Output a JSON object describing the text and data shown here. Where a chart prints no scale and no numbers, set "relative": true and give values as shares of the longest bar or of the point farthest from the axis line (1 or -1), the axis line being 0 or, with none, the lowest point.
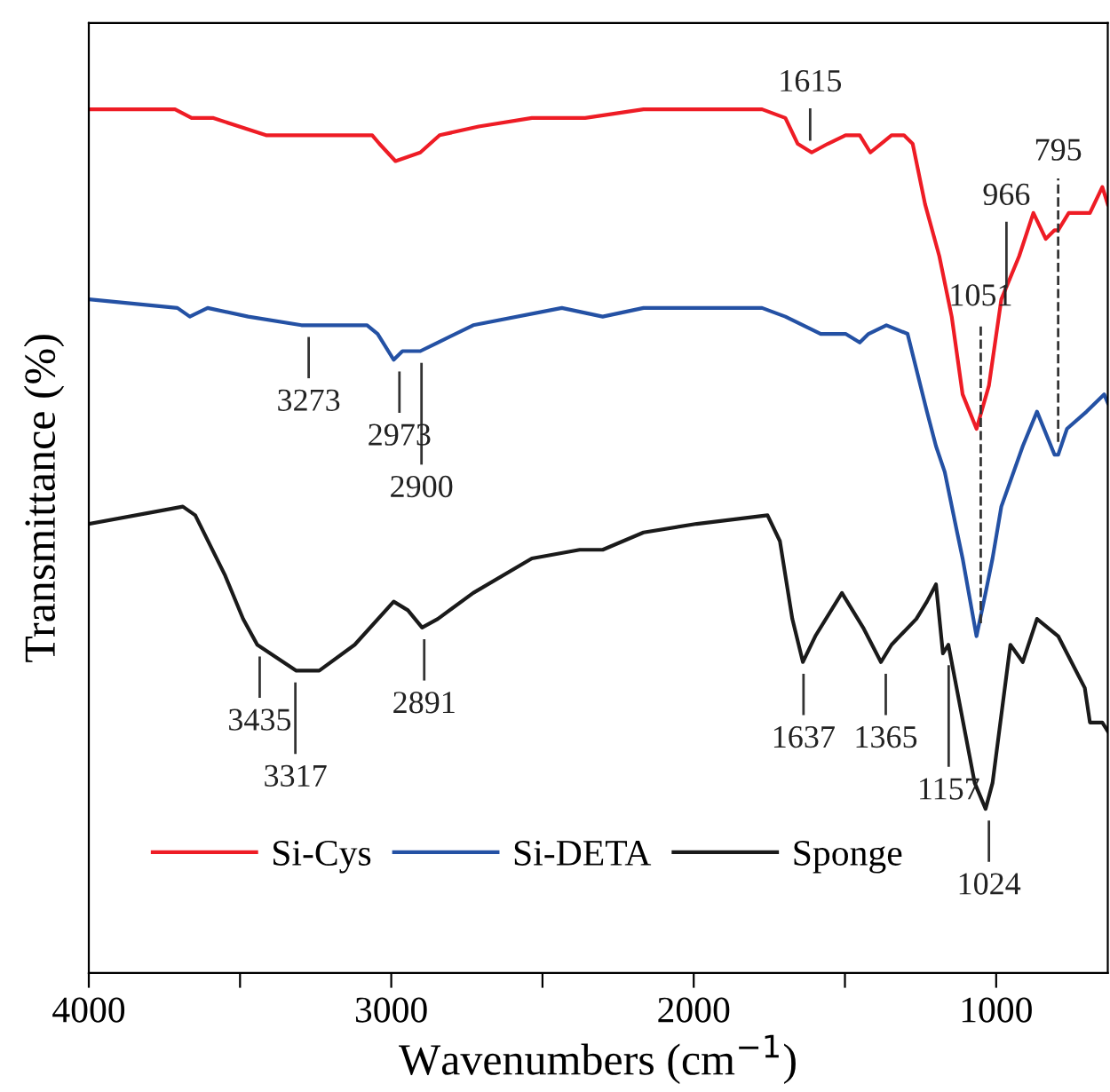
{
  "chart_data": {
    "type": "line",
    "relative": true,
    "xlabel": "Wavenumbers (cm$^{−1}$)",
    "ylabel": "Transmittance (%)",
    "xlim": [
      4000,
      631
    ],
    "xticks": [
      4000,
      {
        "value": 3500,
        "label": null
      },
      3000,
      {
        "value": 2500,
        "label": null
      },
      2000,
      {
        "value": 1500,
        "label": null
      },
      1000
    ],
    "legend": "bottom left",
    "line_style": "solid",
    "marker": "none",
    "series": [
      {
        "name": "Si-Cys",
        "color": "#ee1c25",
        "x": [
          4000,
          3715,
          3660,
          3590,
          3414,
          3279,
          3063,
          3039,
          2986,
          2904,
          2840,
          2711,
          2535,
          2359,
          2166,
          1774,
          1697,
          1656,
          1610,
          1557,
          1498,
          1451,
          1416,
          1381,
          1346,
          1305,
          1276,
          1235,
          1188,
          1147,
          1111,
          1065,
          1024,
          983,
          924,
          877,
          836,
          807,
          795,
          760,
          690,
          649,
          631
        ],
        "values": [
          1.0,
          1.0,
          0.99,
          0.99,
          0.97,
          0.97,
          0.97,
          0.96,
          0.94,
          0.95,
          0.97,
          0.98,
          0.99,
          0.99,
          1.0,
          1.0,
          0.99,
          0.96,
          0.95,
          0.96,
          0.97,
          0.97,
          0.95,
          0.96,
          0.97,
          0.97,
          0.96,
          0.89,
          0.83,
          0.76,
          0.67,
          0.63,
          0.68,
          0.78,
          0.83,
          0.88,
          0.85,
          0.86,
          0.86,
          0.88,
          0.88,
          0.91,
          0.89
        ]
      },
      {
        "name": "Si-DETA",
        "color": "#2451a4",
        "x": [
          4000,
          3707,
          3666,
          3607,
          3473,
          3297,
          3080,
          3045,
          2992,
          2963,
          2904,
          2846,
          2729,
          2436,
          2301,
          2166,
          1774,
          1697,
          1580,
          1498,
          1451,
          1422,
          1363,
          1293,
          1229,
          1199,
          1170,
          1129,
          1111,
          1065,
          1035,
          1012,
          983,
          912,
          865,
          807,
          795,
          766,
          701,
          643,
          631
        ],
        "values": [
          0.78,
          0.77,
          0.76,
          0.77,
          0.76,
          0.75,
          0.75,
          0.74,
          0.71,
          0.72,
          0.72,
          0.73,
          0.75,
          0.77,
          0.76,
          0.77,
          0.77,
          0.76,
          0.74,
          0.74,
          0.73,
          0.74,
          0.75,
          0.74,
          0.65,
          0.61,
          0.58,
          0.51,
          0.48,
          0.39,
          0.44,
          0.48,
          0.54,
          0.61,
          0.65,
          0.6,
          0.6,
          0.63,
          0.65,
          0.67,
          0.66
        ]
      },
      {
        "name": "Sponge",
        "color": "#1a1a1a",
        "x": [
          4000,
          3689,
          3648,
          3549,
          3490,
          3443,
          3314,
          3238,
          3121,
          2992,
          2945,
          2898,
          2846,
          2729,
          2535,
          2377,
          2301,
          2166,
          1990,
          1756,
          1715,
          1674,
          1639,
          1598,
          1510,
          1440,
          1381,
          1346,
          1264,
          1229,
          1199,
          1176,
          1158,
          1071,
          1035,
          1012,
          953,
          912,
          865,
          795,
          707,
          690,
          649,
          631
        ],
        "values": [
          0.52,
          0.54,
          0.53,
          0.46,
          0.41,
          0.38,
          0.35,
          0.35,
          0.38,
          0.43,
          0.42,
          0.4,
          0.41,
          0.44,
          0.48,
          0.49,
          0.49,
          0.51,
          0.52,
          0.53,
          0.5,
          0.41,
          0.36,
          0.39,
          0.44,
          0.4,
          0.36,
          0.38,
          0.41,
          0.43,
          0.45,
          0.37,
          0.38,
          0.22,
          0.19,
          0.22,
          0.38,
          0.36,
          0.41,
          0.39,
          0.33,
          0.29,
          0.29,
          0.28
        ]
      }
    ],
    "annotations": [
      {
        "text": "3273",
        "x": 3273,
        "y": 0.75
      },
      {
        "text": "2973",
        "x": 2973,
        "y": 0.71
      },
      {
        "text": "2900",
        "x": 2900,
        "y": 0.72
      },
      {
        "text": "1615",
        "x": 1615,
        "y": 0.95
      },
      {
        "text": "1051",
        "x": 1051,
        "y": 0.39
      },
      {
        "text": "966",
        "x": 966,
        "y": 0.78
      },
      {
        "text": "795",
        "x": 795,
        "y": 0.6
      },
      {
        "text": "3435",
        "x": 3435,
        "y": 0.38
      },
      {
        "text": "3317",
        "x": 3317,
        "y": 0.35
      },
      {
        "text": "2891",
        "x": 2891,
        "y": 0.4
      },
      {
        "text": "1637",
        "x": 1637,
        "y": 0.36
      },
      {
        "text": "1365",
        "x": 1365,
        "y": 0.36
      },
      {
        "text": "1157",
        "x": 1157,
        "y": 0.37
      },
      {
        "text": "1024",
        "x": 1024,
        "y": 0.19
      }
    ]
  }
}
